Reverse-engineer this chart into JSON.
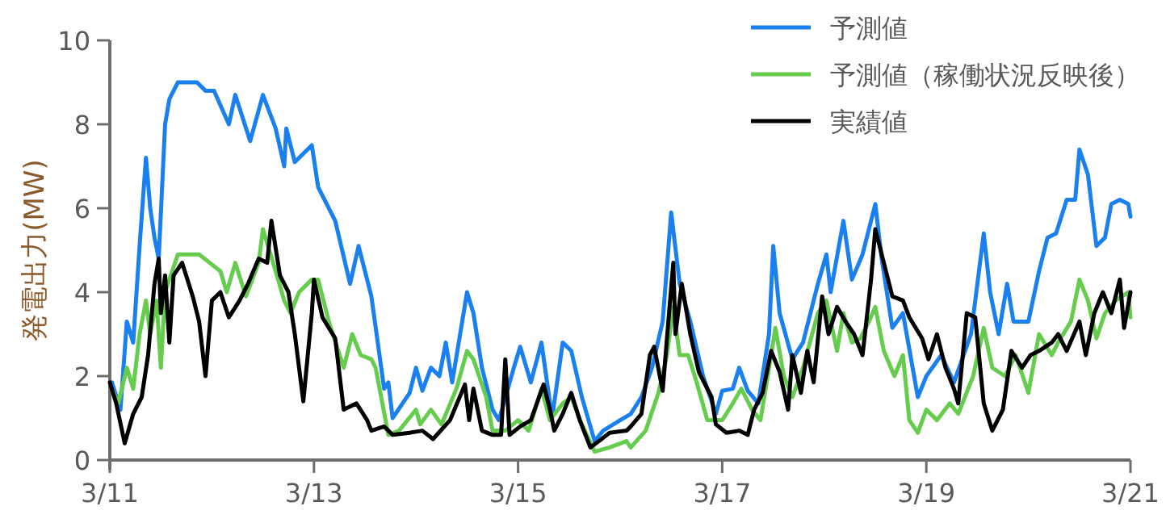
{
  "chart_data": {
    "type": "line",
    "ylabel": "発電出力(MW)",
    "xlim": [
      "--03-11",
      "--03-21"
    ],
    "ylim": [
      0,
      10
    ],
    "xticks": [
      {
        "value": "--03-11",
        "label": "3/11"
      },
      {
        "value": "--03-13",
        "label": "3/13"
      },
      {
        "value": "--03-15",
        "label": "3/15"
      },
      {
        "value": "--03-17",
        "label": "3/17"
      },
      {
        "value": "--03-19",
        "label": "3/19"
      },
      {
        "value": "--03-21",
        "label": "3/21"
      }
    ],
    "yticks": [
      0,
      2,
      4,
      6,
      8,
      10
    ],
    "grid": false,
    "legend": "top right",
    "marker": "none",
    "line_style": "solid",
    "series": [
      {
        "name": "予測値",
        "color": "#1a80f0",
        "x": [
          "--03-11T00:30",
          "--03-11T02:30",
          "--03-11T04:00",
          "--03-11T05:30",
          "--03-11T07:00",
          "--03-11T08:30",
          "--03-11T09:30",
          "--03-11T10:30",
          "--03-11T11:30",
          "--03-11T13:00",
          "--03-11T14:00",
          "--03-11T16:00",
          "--03-11T20:30",
          "--03-11T22:30",
          "--03-12T00:30",
          "--03-12T04:00",
          "--03-12T05:30",
          "--03-12T09:00",
          "--03-12T12:00",
          "--03-12T15:00",
          "--03-12T17:00",
          "--03-12T17:30",
          "--03-12T19:30",
          "--03-12T23:30",
          "--03-13T01:00",
          "--03-13T05:00",
          "--03-13T08:30",
          "--03-13T10:30",
          "--03-13T13:30",
          "--03-13T16:30",
          "--03-13T17:30",
          "--03-13T18:30",
          "--03-13T22:30",
          "--03-14T00:00",
          "--03-14T01:30",
          "--03-14T03:30",
          "--03-14T05:30",
          "--03-14T07:00",
          "--03-14T08:30",
          "--03-14T12:00",
          "--03-14T13:30",
          "--03-14T15:30",
          "--03-14T18:00",
          "--03-14T19:30",
          "--03-14T23:00",
          "--03-15T00:30",
          "--03-15T03:00",
          "--03-15T05:30",
          "--03-15T08:00",
          "--03-15T10:30",
          "--03-15T12:30",
          "--03-15T15:00",
          "--03-15T18:00",
          "--03-15T20:00",
          "--03-16T00:00",
          "--03-16T02:30",
          "--03-16T05:00",
          "--03-16T07:30",
          "--03-16T10:00",
          "--03-16T12:00",
          "--03-16T14:00",
          "--03-16T16:30",
          "--03-16T19:30",
          "--03-16T22:30",
          "--03-17T00:00",
          "--03-17T02:30",
          "--03-17T04:00",
          "--03-17T06:00",
          "--03-17T08:30",
          "--03-17T11:00",
          "--03-17T12:00",
          "--03-17T13:30",
          "--03-17T16:30",
          "--03-17T19:00",
          "--03-17T22:30",
          "--03-18T00:30",
          "--03-18T01:30",
          "--03-18T04:30",
          "--03-18T06:30",
          "--03-18T09:00",
          "--03-18T12:00",
          "--03-18T13:30",
          "--03-18T16:00",
          "--03-18T18:30",
          "--03-18T22:00",
          "--03-19T00:00",
          "--03-19T03:30",
          "--03-19T06:30",
          "--03-19T10:30",
          "--03-19T13:30",
          "--03-19T15:00",
          "--03-19T17:00",
          "--03-19T19:00",
          "--03-19T20:30",
          "--03-20T00:00",
          "--03-20T02:30",
          "--03-20T04:30",
          "--03-20T06:30",
          "--03-20T09:00",
          "--03-20T11:00",
          "--03-20T12:00",
          "--03-20T14:00",
          "--03-20T16:00",
          "--03-20T18:00",
          "--03-20T19:30",
          "--03-20T21:30",
          "--03-20T23:30",
          "--03-21T00:00"
        ],
        "values": [
          1.85,
          1.2,
          3.3,
          2.8,
          5.1,
          7.2,
          6.0,
          5.3,
          4.8,
          8.0,
          8.6,
          9.0,
          9.0,
          8.8,
          8.8,
          8.0,
          8.7,
          7.6,
          8.7,
          7.9,
          7.0,
          7.9,
          7.1,
          7.5,
          6.5,
          5.7,
          4.2,
          5.1,
          3.9,
          1.7,
          1.85,
          1.0,
          1.6,
          2.2,
          1.65,
          2.2,
          2.0,
          2.8,
          1.85,
          4.0,
          3.5,
          2.2,
          1.2,
          0.95,
          2.2,
          2.7,
          1.85,
          2.8,
          1.0,
          2.8,
          2.6,
          1.5,
          0.45,
          0.7,
          0.95,
          1.1,
          1.5,
          2.2,
          3.3,
          5.9,
          4.2,
          3.3,
          2.0,
          1.1,
          1.65,
          1.7,
          2.2,
          1.65,
          1.35,
          3.0,
          5.1,
          3.5,
          2.4,
          2.8,
          4.2,
          4.9,
          4.0,
          5.7,
          4.3,
          4.9,
          6.1,
          4.8,
          3.15,
          3.5,
          1.5,
          2.0,
          2.5,
          1.85,
          3.0,
          5.4,
          4.0,
          3.0,
          4.2,
          3.3,
          3.3,
          4.5,
          5.3,
          5.4,
          6.2,
          6.2,
          7.4,
          6.8,
          5.1,
          5.3,
          6.1,
          6.2,
          6.1,
          5.8
        ]
      },
      {
        "name": "予測値（稼働状況反映後）",
        "color": "#66cc4d",
        "x": [
          "--03-11T00:30",
          "--03-11T02:00",
          "--03-11T04:00",
          "--03-11T05:30",
          "--03-11T07:00",
          "--03-11T08:30",
          "--03-11T09:30",
          "--03-11T11:00",
          "--03-11T12:00",
          "--03-11T13:00",
          "--03-11T16:00",
          "--03-11T21:00",
          "--03-11T23:30",
          "--03-12T02:00",
          "--03-12T03:30",
          "--03-12T05:30",
          "--03-12T08:00",
          "--03-12T11:00",
          "--03-12T12:00",
          "--03-12T15:00",
          "--03-12T17:00",
          "--03-12T18:30",
          "--03-12T20:30",
          "--03-12T23:30",
          "--03-13T01:00",
          "--03-13T03:30",
          "--03-13T07:00",
          "--03-13T09:00",
          "--03-13T11:00",
          "--03-13T13:30",
          "--03-13T14:30",
          "--03-13T17:30",
          "--03-13T20:00",
          "--03-14T00:00",
          "--03-14T01:00",
          "--03-14T03:30",
          "--03-14T06:00",
          "--03-14T09:30",
          "--03-14T12:00",
          "--03-14T13:30",
          "--03-14T16:30",
          "--03-14T18:00",
          "--03-14T21:00",
          "--03-15T00:00",
          "--03-15T02:30",
          "--03-15T05:30",
          "--03-15T07:30",
          "--03-15T10:30",
          "--03-15T12:30",
          "--03-15T15:00",
          "--03-15T18:00",
          "--03-15T21:30",
          "--03-16T01:30",
          "--03-16T02:30",
          "--03-16T06:00",
          "--03-16T09:00",
          "--03-16T11:00",
          "--03-16T12:30",
          "--03-16T14:00",
          "--03-16T16:00",
          "--03-16T18:00",
          "--03-16T20:30",
          "--03-17T00:00",
          "--03-17T02:30",
          "--03-17T04:30",
          "--03-17T07:00",
          "--03-17T09:00",
          "--03-17T11:30",
          "--03-17T12:30",
          "--03-17T14:30",
          "--03-17T16:30",
          "--03-17T19:00",
          "--03-17T22:30",
          "--03-18T00:30",
          "--03-18T03:00",
          "--03-18T04:30",
          "--03-18T06:30",
          "--03-18T08:30",
          "--03-18T10:30",
          "--03-18T12:00",
          "--03-18T14:00",
          "--03-18T16:30",
          "--03-18T18:30",
          "--03-18T20:00",
          "--03-18T22:00",
          "--03-19T00:00",
          "--03-19T02:30",
          "--03-19T05:30",
          "--03-19T07:30",
          "--03-19T11:00",
          "--03-19T13:30",
          "--03-19T15:30",
          "--03-19T18:30",
          "--03-19T21:00",
          "--03-20T00:00",
          "--03-20T02:30",
          "--03-20T05:30",
          "--03-20T07:00",
          "--03-20T10:00",
          "--03-20T12:00",
          "--03-20T14:00",
          "--03-20T16:00",
          "--03-20T18:00",
          "--03-20T20:30",
          "--03-20T23:30",
          "--03-21T00:00"
        ],
        "values": [
          1.7,
          1.35,
          2.2,
          1.7,
          3.0,
          3.8,
          3.0,
          3.8,
          2.2,
          4.0,
          4.9,
          4.9,
          4.7,
          4.5,
          4.0,
          4.7,
          3.9,
          4.7,
          5.5,
          4.5,
          3.8,
          3.5,
          4.0,
          4.3,
          4.3,
          3.3,
          2.2,
          3.0,
          2.5,
          2.4,
          2.2,
          0.6,
          0.7,
          1.2,
          0.85,
          1.2,
          0.85,
          1.7,
          2.6,
          2.4,
          1.5,
          0.7,
          0.7,
          0.95,
          0.7,
          1.7,
          0.95,
          1.35,
          1.5,
          0.85,
          0.2,
          0.3,
          0.45,
          0.3,
          0.7,
          1.6,
          2.5,
          3.65,
          2.5,
          2.5,
          1.85,
          0.95,
          0.95,
          1.35,
          1.7,
          1.2,
          0.95,
          2.5,
          3.15,
          2.0,
          1.5,
          2.2,
          3.5,
          3.8,
          2.6,
          3.5,
          2.8,
          2.9,
          3.3,
          3.65,
          2.6,
          2.0,
          2.5,
          0.95,
          0.65,
          1.2,
          0.95,
          1.35,
          1.1,
          2.0,
          3.15,
          2.2,
          2.0,
          2.5,
          1.6,
          3.0,
          2.5,
          2.8,
          3.3,
          4.3,
          3.8,
          2.9,
          3.5,
          3.8,
          4.0,
          3.4
        ]
      },
      {
        "name": "実績値",
        "color": "#000000",
        "x": [
          "--03-11T00:00",
          "--03-11T01:30",
          "--03-11T03:30",
          "--03-11T05:30",
          "--03-11T07:30",
          "--03-11T09:00",
          "--03-11T10:30",
          "--03-11T11:30",
          "--03-11T12:00",
          "--03-11T13:00",
          "--03-11T14:00",
          "--03-11T15:00",
          "--03-11T17:00",
          "--03-11T19:30",
          "--03-11T21:00",
          "--03-11T22:30",
          "--03-12T00:00",
          "--03-12T02:00",
          "--03-12T04:00",
          "--03-12T06:30",
          "--03-12T08:30",
          "--03-12T11:00",
          "--03-12T13:00",
          "--03-12T14:00",
          "--03-12T16:00",
          "--03-12T18:00",
          "--03-12T19:30",
          "--03-12T21:30",
          "--03-12T23:30",
          "--03-13T00:00",
          "--03-13T02:00",
          "--03-13T05:00",
          "--03-13T07:00",
          "--03-13T10:00",
          "--03-13T12:30",
          "--03-13T13:30",
          "--03-13T16:30",
          "--03-13T18:30",
          "--03-13T22:30",
          "--03-14T01:30",
          "--03-14T04:00",
          "--03-14T08:00",
          "--03-14T11:30",
          "--03-14T12:30",
          "--03-14T13:30",
          "--03-14T15:30",
          "--03-14T18:00",
          "--03-14T20:00",
          "--03-14T21:00",
          "--03-14T22:00",
          "--03-15T00:30",
          "--03-15T03:00",
          "--03-15T06:00",
          "--03-15T07:30",
          "--03-15T08:30",
          "--03-15T10:30",
          "--03-15T12:30",
          "--03-15T14:30",
          "--03-15T17:00",
          "--03-15T19:00",
          "--03-15T21:30",
          "--03-16T01:30",
          "--03-16T02:30",
          "--03-16T05:00",
          "--03-16T07:00",
          "--03-16T08:00",
          "--03-16T10:00",
          "--03-16T11:30",
          "--03-16T12:30",
          "--03-16T13:00",
          "--03-16T14:30",
          "--03-16T16:30",
          "--03-16T18:30",
          "--03-16T21:30",
          "--03-16T22:30",
          "--03-17T01:00",
          "--03-17T04:00",
          "--03-17T06:00",
          "--03-17T07:30",
          "--03-17T09:30",
          "--03-17T11:30",
          "--03-17T13:30",
          "--03-17T15:30",
          "--03-17T16:30",
          "--03-17T18:30",
          "--03-17T20:00",
          "--03-17T21:30",
          "--03-17T23:30",
          "--03-18T01:00",
          "--03-18T03:00",
          "--03-18T05:00",
          "--03-18T07:00",
          "--03-18T09:00",
          "--03-18T11:00",
          "--03-18T12:00",
          "--03-18T14:00",
          "--03-18T16:00",
          "--03-18T18:30",
          "--03-18T20:00",
          "--03-18T23:00",
          "--03-19T00:30",
          "--03-19T02:30",
          "--03-19T04:30",
          "--03-19T06:30",
          "--03-19T07:30",
          "--03-19T09:30",
          "--03-19T11:30",
          "--03-19T13:30",
          "--03-19T15:30",
          "--03-19T18:00",
          "--03-19T20:00",
          "--03-19T22:30",
          "--03-20T00:30",
          "--03-20T02:30",
          "--03-20T05:30",
          "--03-20T07:00",
          "--03-20T09:00",
          "--03-20T12:00",
          "--03-20T13:30",
          "--03-20T15:30",
          "--03-20T17:30",
          "--03-20T19:30",
          "--03-20T21:30",
          "--03-20T22:30",
          "--03-21T00:00"
        ],
        "values": [
          1.85,
          1.35,
          0.4,
          1.1,
          1.5,
          2.5,
          4.2,
          4.8,
          3.5,
          4.4,
          2.8,
          4.4,
          4.7,
          3.9,
          3.3,
          2.0,
          3.8,
          4.0,
          3.4,
          3.8,
          4.2,
          4.8,
          4.7,
          5.7,
          4.4,
          4.0,
          3.0,
          1.4,
          3.5,
          4.3,
          3.4,
          2.9,
          1.2,
          1.35,
          0.95,
          0.7,
          0.8,
          0.6,
          0.65,
          0.7,
          0.5,
          0.95,
          1.8,
          0.95,
          1.7,
          0.7,
          0.6,
          0.6,
          2.4,
          0.6,
          0.8,
          0.95,
          1.8,
          1.2,
          0.7,
          1.1,
          1.6,
          0.95,
          0.3,
          0.45,
          0.65,
          0.7,
          0.8,
          1.1,
          2.5,
          2.7,
          1.65,
          3.5,
          4.7,
          3.0,
          4.2,
          3.0,
          2.1,
          1.5,
          0.85,
          0.65,
          0.7,
          0.6,
          1.2,
          1.6,
          2.6,
          2.1,
          1.2,
          2.5,
          1.6,
          2.6,
          1.85,
          3.9,
          3.0,
          3.65,
          3.3,
          3.0,
          2.5,
          4.3,
          5.5,
          4.7,
          3.9,
          3.8,
          3.4,
          2.9,
          2.4,
          3.0,
          2.2,
          1.7,
          1.35,
          3.5,
          3.4,
          1.35,
          0.7,
          1.2,
          2.6,
          2.2,
          2.5,
          2.6,
          2.8,
          3.0,
          2.6,
          3.3,
          2.5,
          3.5,
          4.0,
          3.5,
          4.3,
          3.15,
          4.0
        ]
      }
    ]
  }
}
